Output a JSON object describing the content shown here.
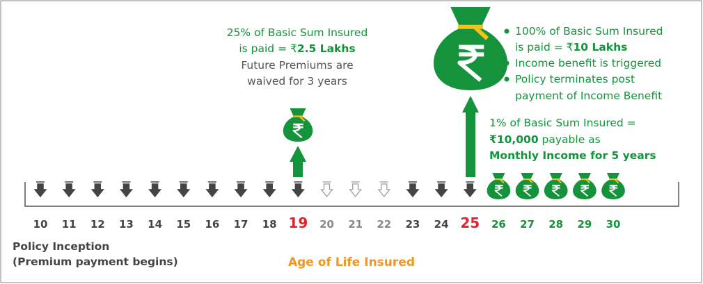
{
  "left_note": {
    "line1": "25% of Basic Sum Insured",
    "line2_prefix": "is paid = ₹",
    "line2_bold": "2.5 Lakhs",
    "line3": "Future Premiums are",
    "line4": "waived for 3 years"
  },
  "right_note": {
    "bullet1_line1": "100% of Basic Sum Insured",
    "bullet1_line2_prefix": "is paid = ₹",
    "bullet1_line2_bold": "10 Lakhs",
    "bullet2": "Income benefit is triggered",
    "bullet3_line1": "Policy terminates post",
    "bullet3_line2": "payment of Income Benefit"
  },
  "income_note": {
    "line1": "1% of Basic Sum Insured =",
    "line2_bold": "₹10,000",
    "line2_rest": " payable as",
    "line3": "Monthly Income for 5 years"
  },
  "ages": [
    "10",
    "11",
    "12",
    "13",
    "14",
    "15",
    "16",
    "17",
    "18",
    "19",
    "20",
    "21",
    "22",
    "23",
    "24",
    "25",
    "26",
    "27",
    "28",
    "29",
    "30"
  ],
  "inception": {
    "line1": "Policy Inception",
    "line2": "(Premium payment begins)"
  },
  "axis_title": "Age of Life Insured"
}
